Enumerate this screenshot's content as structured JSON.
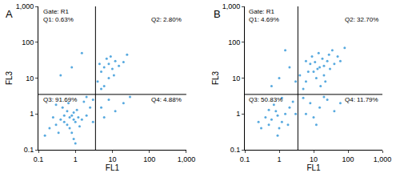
{
  "chart_data": [
    {
      "type": "scatter",
      "title": "A",
      "x_label": "FL1",
      "y_label": "FL3",
      "log": true,
      "grid": false,
      "color": "#3a9ad9",
      "xlim": [
        0.1,
        1000
      ],
      "ylim": [
        0.1,
        1000
      ],
      "xticks": [
        0.1,
        1,
        10,
        100,
        {
          "value": 1000,
          "label": "1,000"
        }
      ],
      "yticks": [
        0.1,
        1,
        10,
        100,
        {
          "value": 1000,
          "label": "1,000"
        }
      ],
      "quadrant_x": 3.5,
      "quadrant_y": 3.5,
      "annotations": [
        "Gate: R1",
        "Q1: 0.63%",
        "Q2: 2.80%",
        "Q3: 91.69%",
        "Q4: 4.88%"
      ],
      "x": [
        0.5,
        0.7,
        0.9,
        0.6,
        0.8,
        1.0,
        0.4,
        0.7,
        1.2,
        0.5,
        0.3,
        0.9,
        1.5,
        0.6,
        0.8,
        1.1,
        0.35,
        2.0,
        0.25,
        1.3,
        0.45,
        0.2,
        2.5,
        0.65,
        1.7,
        0.15,
        0.9,
        3.0,
        0.3,
        1.0,
        2,
        3,
        6,
        8,
        10,
        12,
        7,
        15,
        5,
        9,
        20,
        11,
        4.5,
        25,
        4,
        6,
        8,
        5,
        5,
        8,
        12,
        20,
        6,
        30,
        0.8,
        1.5,
        0.4
      ],
      "y": [
        0.6,
        0.8,
        0.7,
        0.5,
        0.9,
        0.6,
        0.7,
        0.4,
        0.8,
        0.9,
        0.5,
        1.1,
        0.7,
        1.2,
        0.3,
        1.3,
        0.3,
        0.9,
        0.8,
        0.45,
        1.5,
        0.4,
        1.5,
        2.0,
        2.2,
        0.25,
        0.2,
        0.6,
        1.8,
        0.15,
        3,
        2.5,
        20,
        25,
        18,
        30,
        35,
        22,
        15,
        40,
        28,
        12,
        25,
        45,
        8,
        6,
        10,
        5,
        1.5,
        2.5,
        1.2,
        2,
        0.8,
        3,
        20,
        50,
        12
      ]
    },
    {
      "type": "scatter",
      "title": "B",
      "x_label": "FL1",
      "y_label": "FL3",
      "log": true,
      "grid": false,
      "color": "#3a9ad9",
      "xlim": [
        0.1,
        1000
      ],
      "ylim": [
        0.1,
        1000
      ],
      "xticks": [
        0.1,
        1,
        10,
        100,
        {
          "value": 1000,
          "label": "1,000"
        }
      ],
      "yticks": [
        0.1,
        1,
        10,
        100,
        {
          "value": 1000,
          "label": "1,000"
        }
      ],
      "quadrant_x": 3.5,
      "quadrant_y": 3.5,
      "annotations": [
        "Gate: R1",
        "Q1: 4.69%",
        "Q2: 32.70%",
        "Q3: 50.83%",
        "Q4: 11.79%"
      ],
      "x": [
        0.6,
        0.9,
        1.2,
        0.5,
        0.8,
        1.5,
        0.4,
        1.0,
        2.0,
        0.7,
        0.3,
        1.8,
        2.5,
        0.5,
        1.2,
        0.25,
        3.0,
        0.9,
        10,
        15,
        20,
        8,
        25,
        12,
        18,
        30,
        6,
        40,
        9,
        14,
        50,
        7,
        22,
        5,
        35,
        11,
        60,
        4,
        16,
        28,
        80,
        13,
        20,
        6,
        8,
        15,
        25,
        10,
        40,
        6,
        20,
        12,
        60,
        5,
        1.0,
        2,
        0.6,
        1.5,
        3
      ],
      "y": [
        0.7,
        0.9,
        0.6,
        0.5,
        1.2,
        1.0,
        0.8,
        0.4,
        1.5,
        1.8,
        0.4,
        0.5,
        2.2,
        1.3,
        2.8,
        0.6,
        1.0,
        0.25,
        15,
        20,
        12,
        25,
        30,
        10,
        35,
        18,
        8,
        25,
        40,
        50,
        40,
        15,
        8,
        5,
        60,
        28,
        30,
        12,
        6,
        45,
        70,
        18,
        22,
        30,
        2,
        1.5,
        2.5,
        0.8,
        1.2,
        1,
        3,
        0.5,
        2,
        2.8,
        10,
        20,
        6,
        60,
        8
      ]
    }
  ]
}
